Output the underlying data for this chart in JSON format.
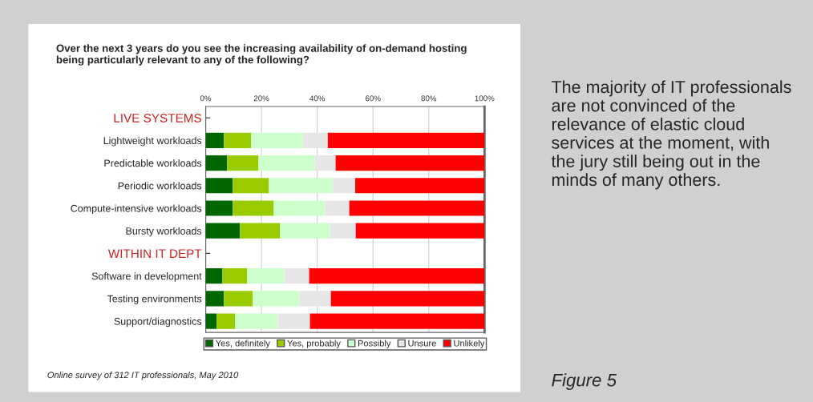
{
  "chart_data": {
    "type": "bar",
    "orientation": "horizontal",
    "stacked": true,
    "title": "Over the next 3 years do you see the increasing availability of on-demand hosting being particularly relevant to any of the following?",
    "categories": [
      "LIVE SYSTEMS",
      "Lightweight workloads",
      "Predictable workloads",
      "Periodic workloads",
      "Compute-intensive workloads",
      "Bursty workloads",
      "WITHIN IT DEPT",
      "Software in development",
      "Testing environments",
      "Support/diagnostics"
    ],
    "series": [
      {
        "name": "Yes, definitely",
        "color": "#006600",
        "values": [
          null,
          6.5,
          7.7,
          9.7,
          9.7,
          12.3,
          null,
          6.0,
          6.5,
          3.9
        ]
      },
      {
        "name": "Yes, probably",
        "color": "#99cc00",
        "values": [
          null,
          9.8,
          11.2,
          13.0,
          14.7,
          14.4,
          null,
          8.9,
          10.4,
          6.7
        ]
      },
      {
        "name": "Possibly",
        "color": "#ccffcc",
        "values": [
          null,
          18.7,
          20.2,
          22.8,
          18.5,
          17.9,
          null,
          13.3,
          16.8,
          15.3
        ]
      },
      {
        "name": "Unsure",
        "color": "#e6e6e6",
        "values": [
          null,
          8.8,
          7.5,
          8.1,
          8.6,
          9.2,
          null,
          8.9,
          11.2,
          11.5
        ]
      },
      {
        "name": "Unlikely",
        "color": "#ff0000",
        "values": [
          null,
          56.2,
          53.4,
          46.4,
          48.5,
          46.2,
          null,
          62.9,
          55.1,
          62.6
        ]
      }
    ],
    "xlim": [
      0,
      100
    ],
    "xticks": [
      {
        "value": 0,
        "label": "0%"
      },
      {
        "value": 20,
        "label": "20%"
      },
      {
        "value": 40,
        "label": "40%"
      },
      {
        "value": 60,
        "label": "60%"
      },
      {
        "value": 80,
        "label": "80%"
      },
      {
        "value": 100,
        "label": "100%"
      }
    ],
    "grid": "x",
    "legend": "bottom",
    "annotations": [
      "Online survey of 312 IT professionals, May 2010",
      "The majority of IT professionals are not convinced of the relevance of elastic cloud services at the moment, with the jury still being out in the minds of many others.",
      "Figure 5"
    ]
  }
}
